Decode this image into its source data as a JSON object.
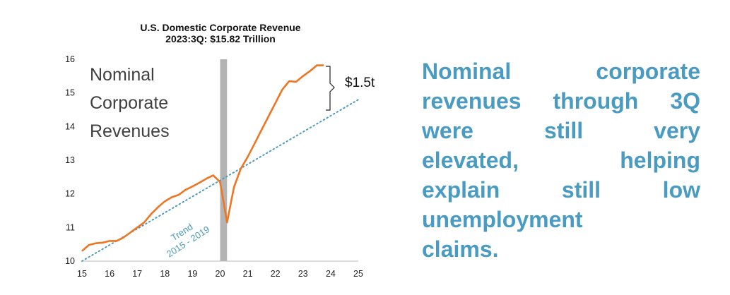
{
  "chart_data": {
    "type": "line",
    "title": "U.S. Domestic Corporate Revenue",
    "subtitle": "2023:3Q:  $15.82 Trillion",
    "series_label": [
      "Nominal",
      "Corporate",
      "Revenues"
    ],
    "xlim": [
      15,
      25
    ],
    "ylim": [
      10,
      16
    ],
    "x_ticks": [
      "15",
      "16",
      "17",
      "18",
      "19",
      "20",
      "21",
      "22",
      "23",
      "24",
      "25"
    ],
    "y_ticks": [
      "10",
      "11",
      "12",
      "13",
      "14",
      "15",
      "16"
    ],
    "recession_band": [
      20.0,
      20.25
    ],
    "series": [
      {
        "color": "#ee7623",
        "x": [
          15.0,
          15.25,
          15.5,
          15.75,
          16.0,
          16.25,
          16.5,
          16.75,
          17.0,
          17.25,
          17.5,
          17.75,
          18.0,
          18.25,
          18.5,
          18.75,
          19.0,
          19.25,
          19.5,
          19.75,
          20.0,
          20.25,
          20.5,
          20.75,
          21.0,
          21.25,
          21.5,
          21.75,
          22.0,
          22.25,
          22.5,
          22.75,
          23.0,
          23.25,
          23.5,
          23.75
        ],
        "y": [
          10.3,
          10.48,
          10.53,
          10.55,
          10.6,
          10.6,
          10.7,
          10.85,
          11.0,
          11.15,
          11.4,
          11.6,
          11.78,
          11.9,
          11.97,
          12.12,
          12.22,
          12.33,
          12.45,
          12.55,
          12.35,
          11.15,
          12.2,
          12.75,
          13.1,
          13.5,
          13.9,
          14.3,
          14.7,
          15.1,
          15.35,
          15.33,
          15.5,
          15.65,
          15.82,
          15.82
        ]
      }
    ],
    "trend": {
      "label_line1": "Trend",
      "label_line2": "2015 - 2019",
      "color": "#4a9bbd",
      "x": [
        15.0,
        25.0
      ],
      "y": [
        10.0,
        14.8
      ]
    },
    "gap_annotation": "$1.5t"
  },
  "commentary": {
    "lines": [
      [
        "Nominal",
        "corporate"
      ],
      [
        "revenues",
        "through",
        "3Q"
      ],
      [
        "were",
        "still",
        "very"
      ],
      [
        "elevated,",
        "helping"
      ],
      [
        "explain",
        "still",
        "low"
      ],
      [
        "unemployment"
      ],
      [
        "claims."
      ]
    ]
  }
}
